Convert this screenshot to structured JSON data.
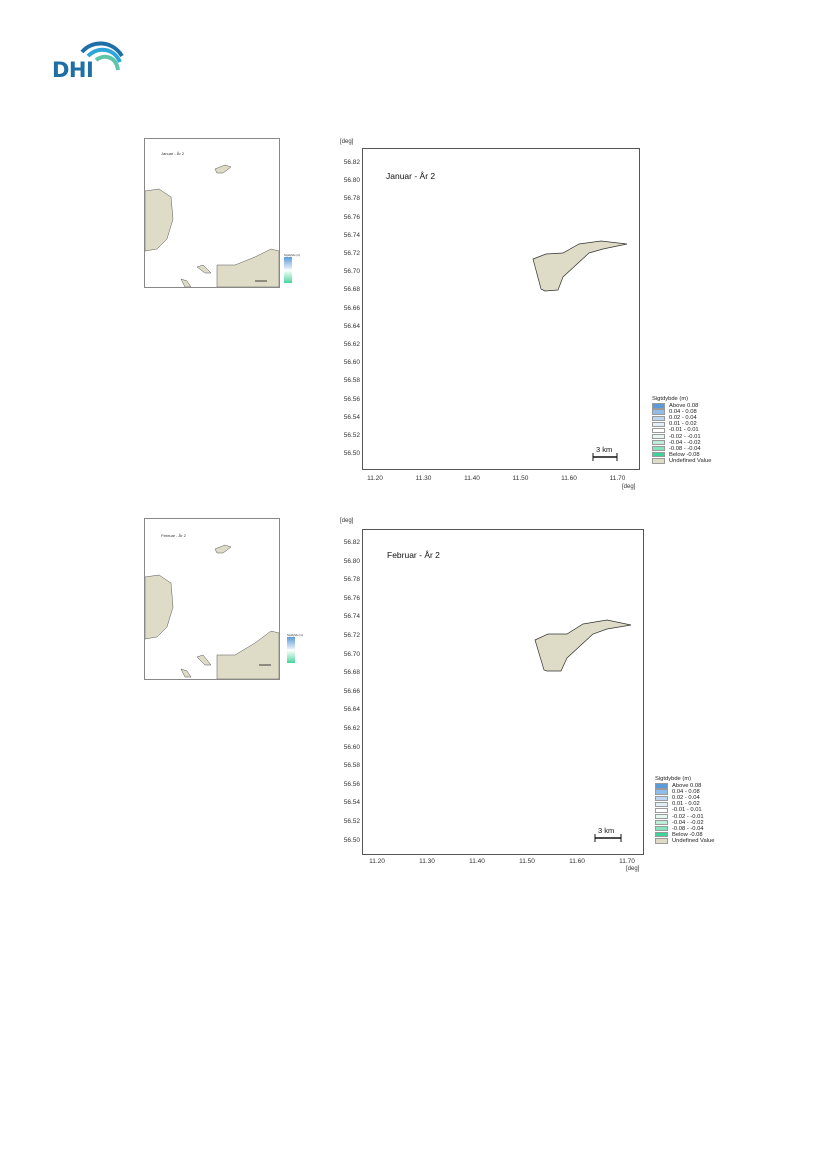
{
  "logo": {
    "text": "DHI",
    "colors": [
      "#1f6fa7",
      "#2fa6d9",
      "#5ec6a8"
    ]
  },
  "panels": [
    {
      "title": "Januar - År 2",
      "y_unit": "[deg]",
      "x_unit": "[deg]",
      "y_ticks": [
        "56.82",
        "56.80",
        "56.78",
        "56.76",
        "56.74",
        "56.72",
        "56.70",
        "56.68",
        "56.66",
        "56.64",
        "56.62",
        "56.60",
        "56.58",
        "56.56",
        "56.54",
        "56.52",
        "56.50"
      ],
      "x_ticks": [
        "11.20",
        "11.30",
        "11.40",
        "11.50",
        "11.60",
        "11.70"
      ],
      "scale_bar": "3 km",
      "legend": {
        "title": "Sigtdybde (m)",
        "items": [
          {
            "label": "Above  0.08",
            "color": "#5b9bd9"
          },
          {
            "label": "0.04 -  0.08",
            "color": "#8fbde6"
          },
          {
            "label": "0.02 -  0.04",
            "color": "#bcd7ef"
          },
          {
            "label": "0.01 -  0.02",
            "color": "#e4eef8"
          },
          {
            "label": "-0.01 -  0.01",
            "color": "#ffffff"
          },
          {
            "label": "-0.02 - -0.01",
            "color": "#e6f7ef"
          },
          {
            "label": "-0.04 - -0.02",
            "color": "#bfeed8"
          },
          {
            "label": "-0.08 - -0.04",
            "color": "#86e2bd"
          },
          {
            "label": "Below  -0.08",
            "color": "#3fd39c"
          },
          {
            "label": "Undefined Value",
            "color": "#dedcc6"
          }
        ]
      }
    },
    {
      "title": "Februar - År 2",
      "y_unit": "[deg]",
      "x_unit": "[deg]",
      "y_ticks": [
        "56.82",
        "56.80",
        "56.78",
        "56.76",
        "56.74",
        "56.72",
        "56.70",
        "56.68",
        "56.66",
        "56.64",
        "56.62",
        "56.60",
        "56.58",
        "56.56",
        "56.54",
        "56.52",
        "56.50"
      ],
      "x_ticks": [
        "11.20",
        "11.30",
        "11.40",
        "11.50",
        "11.60",
        "11.70"
      ],
      "scale_bar": "3 km",
      "legend": {
        "title": "Sigtdybde (m)",
        "items": [
          {
            "label": "Above  0.08",
            "color": "#5b9bd9"
          },
          {
            "label": "0.04 -  0.08",
            "color": "#8fbde6"
          },
          {
            "label": "0.02 -  0.04",
            "color": "#bcd7ef"
          },
          {
            "label": "0.01 -  0.02",
            "color": "#e4eef8"
          },
          {
            "label": "-0.01 -  0.01",
            "color": "#ffffff"
          },
          {
            "label": "-0.02 - -0.01",
            "color": "#e6f7ef"
          },
          {
            "label": "-0.04 - -0.02",
            "color": "#bfeed8"
          },
          {
            "label": "-0.08 - -0.04",
            "color": "#86e2bd"
          },
          {
            "label": "Below  -0.08",
            "color": "#3fd39c"
          },
          {
            "label": "Undefined Value",
            "color": "#dedcc6"
          }
        ]
      }
    }
  ],
  "land_color": "#dedcc6"
}
